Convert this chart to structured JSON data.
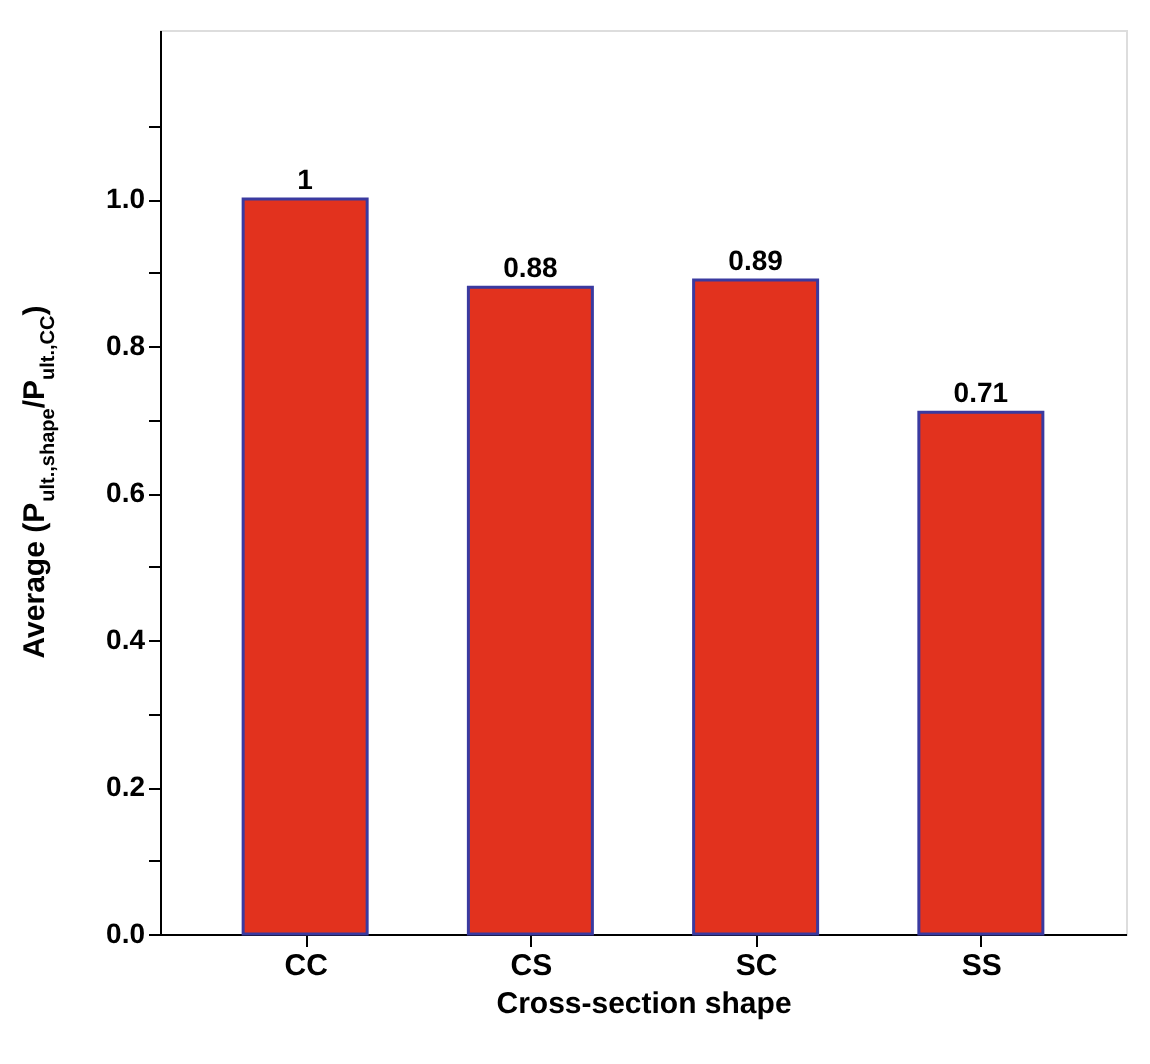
{
  "chart_data": {
    "type": "bar",
    "categories": [
      "CC",
      "CS",
      "SC",
      "SS"
    ],
    "values": [
      1,
      0.88,
      0.89,
      0.71
    ],
    "color": "#e2321e",
    "xlabel": "Cross-section shape",
    "ylabel": "Average (P$_{ult.,shape}$/P$_{ult.,CC}$)",
    "ylim": [
      0,
      1.23
    ],
    "yticks": [
      {
        "value": 0,
        "label": "0.0"
      },
      {
        "value": 0.1,
        "label": null
      },
      {
        "value": 0.2,
        "label": "0.2"
      },
      {
        "value": 0.3,
        "label": null
      },
      {
        "value": 0.4,
        "label": "0.4"
      },
      {
        "value": 0.5,
        "label": null
      },
      {
        "value": 0.6,
        "label": "0.6"
      },
      {
        "value": 0.7,
        "label": null
      },
      {
        "value": 0.8,
        "label": "0.8"
      },
      {
        "value": 0.9,
        "label": null
      },
      {
        "value": 1.0,
        "label": "1.0"
      },
      {
        "value": 1.1,
        "label": null
      }
    ],
    "data_labels": true,
    "grid": false
  }
}
